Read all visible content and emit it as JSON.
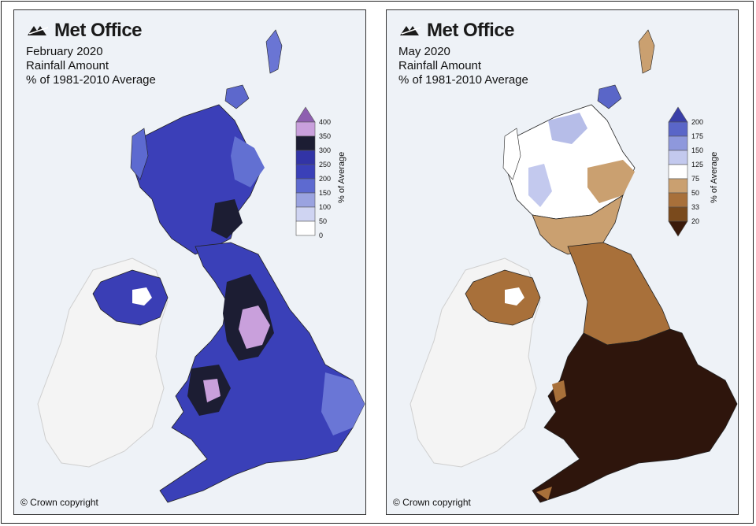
{
  "brand": "Met Office",
  "copyright": "© Crown copyright",
  "panels": [
    {
      "month": "February 2020",
      "subtitle": "Rainfall Amount",
      "metric": "% of 1981-2010 Average",
      "legend_title": "% of Average",
      "legend_ticks": [
        "400",
        "350",
        "300",
        "250",
        "200",
        "150",
        "100",
        "50",
        "0"
      ],
      "legend_colors": [
        "#8e5fb0",
        "#c9a0dc",
        "#1c1d33",
        "#3234a6",
        "#3a40b8",
        "#5d6ad0",
        "#9aa3e0",
        "#cfd4f2",
        "#ffffff"
      ]
    },
    {
      "month": "May 2020",
      "subtitle": "Rainfall Amount",
      "metric": "% of 1981-2010 Average",
      "legend_title": "% of Average",
      "legend_ticks": [
        "200",
        "175",
        "150",
        "125",
        "75",
        "50",
        "33",
        "20"
      ],
      "legend_colors": [
        "#3a3fa8",
        "#5a66c8",
        "#8e98dc",
        "#c3c9ee",
        "#ffffff",
        "#caa070",
        "#a8703a",
        "#7a4a1c",
        "#3a1a0a"
      ]
    }
  ]
}
